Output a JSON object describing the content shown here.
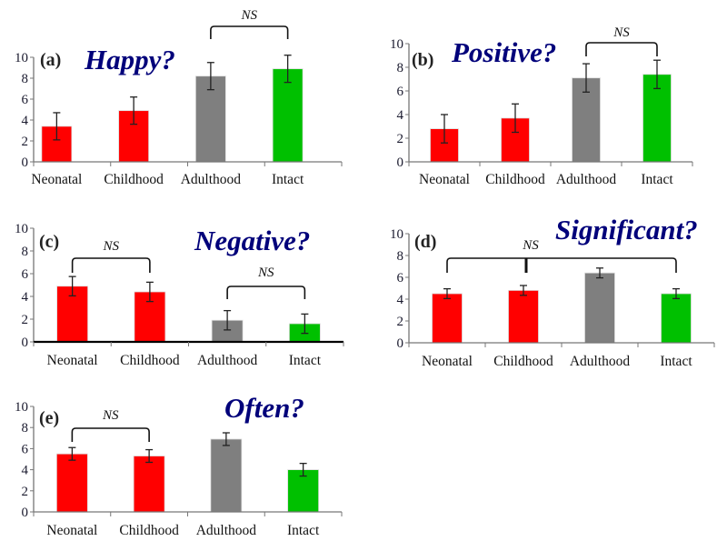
{
  "chart_data": [
    {
      "type": "bar",
      "panel": "(a)",
      "title": "Happy?",
      "categories": [
        "Neonatal",
        "Childhood",
        "Adulthood",
        "Intact"
      ],
      "values": [
        3.4,
        4.9,
        8.2,
        8.9
      ],
      "errors": [
        1.3,
        1.3,
        1.3,
        1.3
      ],
      "ylim": [
        0,
        10
      ],
      "yticks": [
        0,
        2,
        4,
        6,
        8,
        10
      ],
      "bar_colors": [
        "#ff0000",
        "#ff0000",
        "#7f7f7f",
        "#00c000"
      ],
      "annotations": [
        {
          "label": "NS",
          "from": "Adulthood",
          "to": "Intact"
        }
      ]
    },
    {
      "type": "bar",
      "panel": "(b)",
      "title": "Positive?",
      "categories": [
        "Neonatal",
        "Childhood",
        "Adulthood",
        "Intact"
      ],
      "values": [
        2.8,
        3.7,
        7.1,
        7.4
      ],
      "errors": [
        1.2,
        1.2,
        1.2,
        1.2
      ],
      "ylim": [
        0,
        10
      ],
      "yticks": [
        0,
        2,
        4,
        6,
        8,
        10
      ],
      "bar_colors": [
        "#ff0000",
        "#ff0000",
        "#7f7f7f",
        "#00c000"
      ],
      "annotations": [
        {
          "label": "NS",
          "from": "Adulthood",
          "to": "Intact"
        }
      ]
    },
    {
      "type": "bar",
      "panel": "(c)",
      "title": "Negative?",
      "categories": [
        "Neonatal",
        "Childhood",
        "Adulthood",
        "Intact"
      ],
      "values": [
        4.9,
        4.4,
        1.9,
        1.6
      ],
      "errors": [
        0.85,
        0.85,
        0.85,
        0.85
      ],
      "ylim": [
        0,
        10
      ],
      "yticks": [
        0,
        2,
        4,
        6,
        8,
        10
      ],
      "bar_colors": [
        "#ff0000",
        "#ff0000",
        "#7f7f7f",
        "#00c000"
      ],
      "annotations": [
        {
          "label": "NS",
          "from": "Neonatal",
          "to": "Childhood"
        },
        {
          "label": "NS",
          "from": "Adulthood",
          "to": "Intact"
        }
      ]
    },
    {
      "type": "bar",
      "panel": "(d)",
      "title": "Significant?",
      "categories": [
        "Neonatal",
        "Childhood",
        "Adulthood",
        "Intact"
      ],
      "values": [
        4.5,
        4.8,
        6.4,
        4.5
      ],
      "errors": [
        0.45,
        0.45,
        0.45,
        0.45
      ],
      "ylim": [
        0,
        10
      ],
      "yticks": [
        0,
        2,
        4,
        6,
        8,
        10
      ],
      "bar_colors": [
        "#ff0000",
        "#ff0000",
        "#7f7f7f",
        "#00c000"
      ],
      "annotations": [
        {
          "label": "NS",
          "from": "Neonatal",
          "to": "Intact",
          "mid": "Childhood"
        }
      ]
    },
    {
      "type": "bar",
      "panel": "(e)",
      "title": "Often?",
      "categories": [
        "Neonatal",
        "Childhood",
        "Adulthood",
        "Intact"
      ],
      "values": [
        5.5,
        5.3,
        6.9,
        4.0
      ],
      "errors": [
        0.6,
        0.6,
        0.6,
        0.6
      ],
      "ylim": [
        0,
        10
      ],
      "yticks": [
        0,
        2,
        4,
        6,
        8,
        10
      ],
      "bar_colors": [
        "#ff0000",
        "#ff0000",
        "#7f7f7f",
        "#00c000"
      ],
      "annotations": [
        {
          "label": "NS",
          "from": "Neonatal",
          "to": "Childhood"
        }
      ]
    }
  ]
}
